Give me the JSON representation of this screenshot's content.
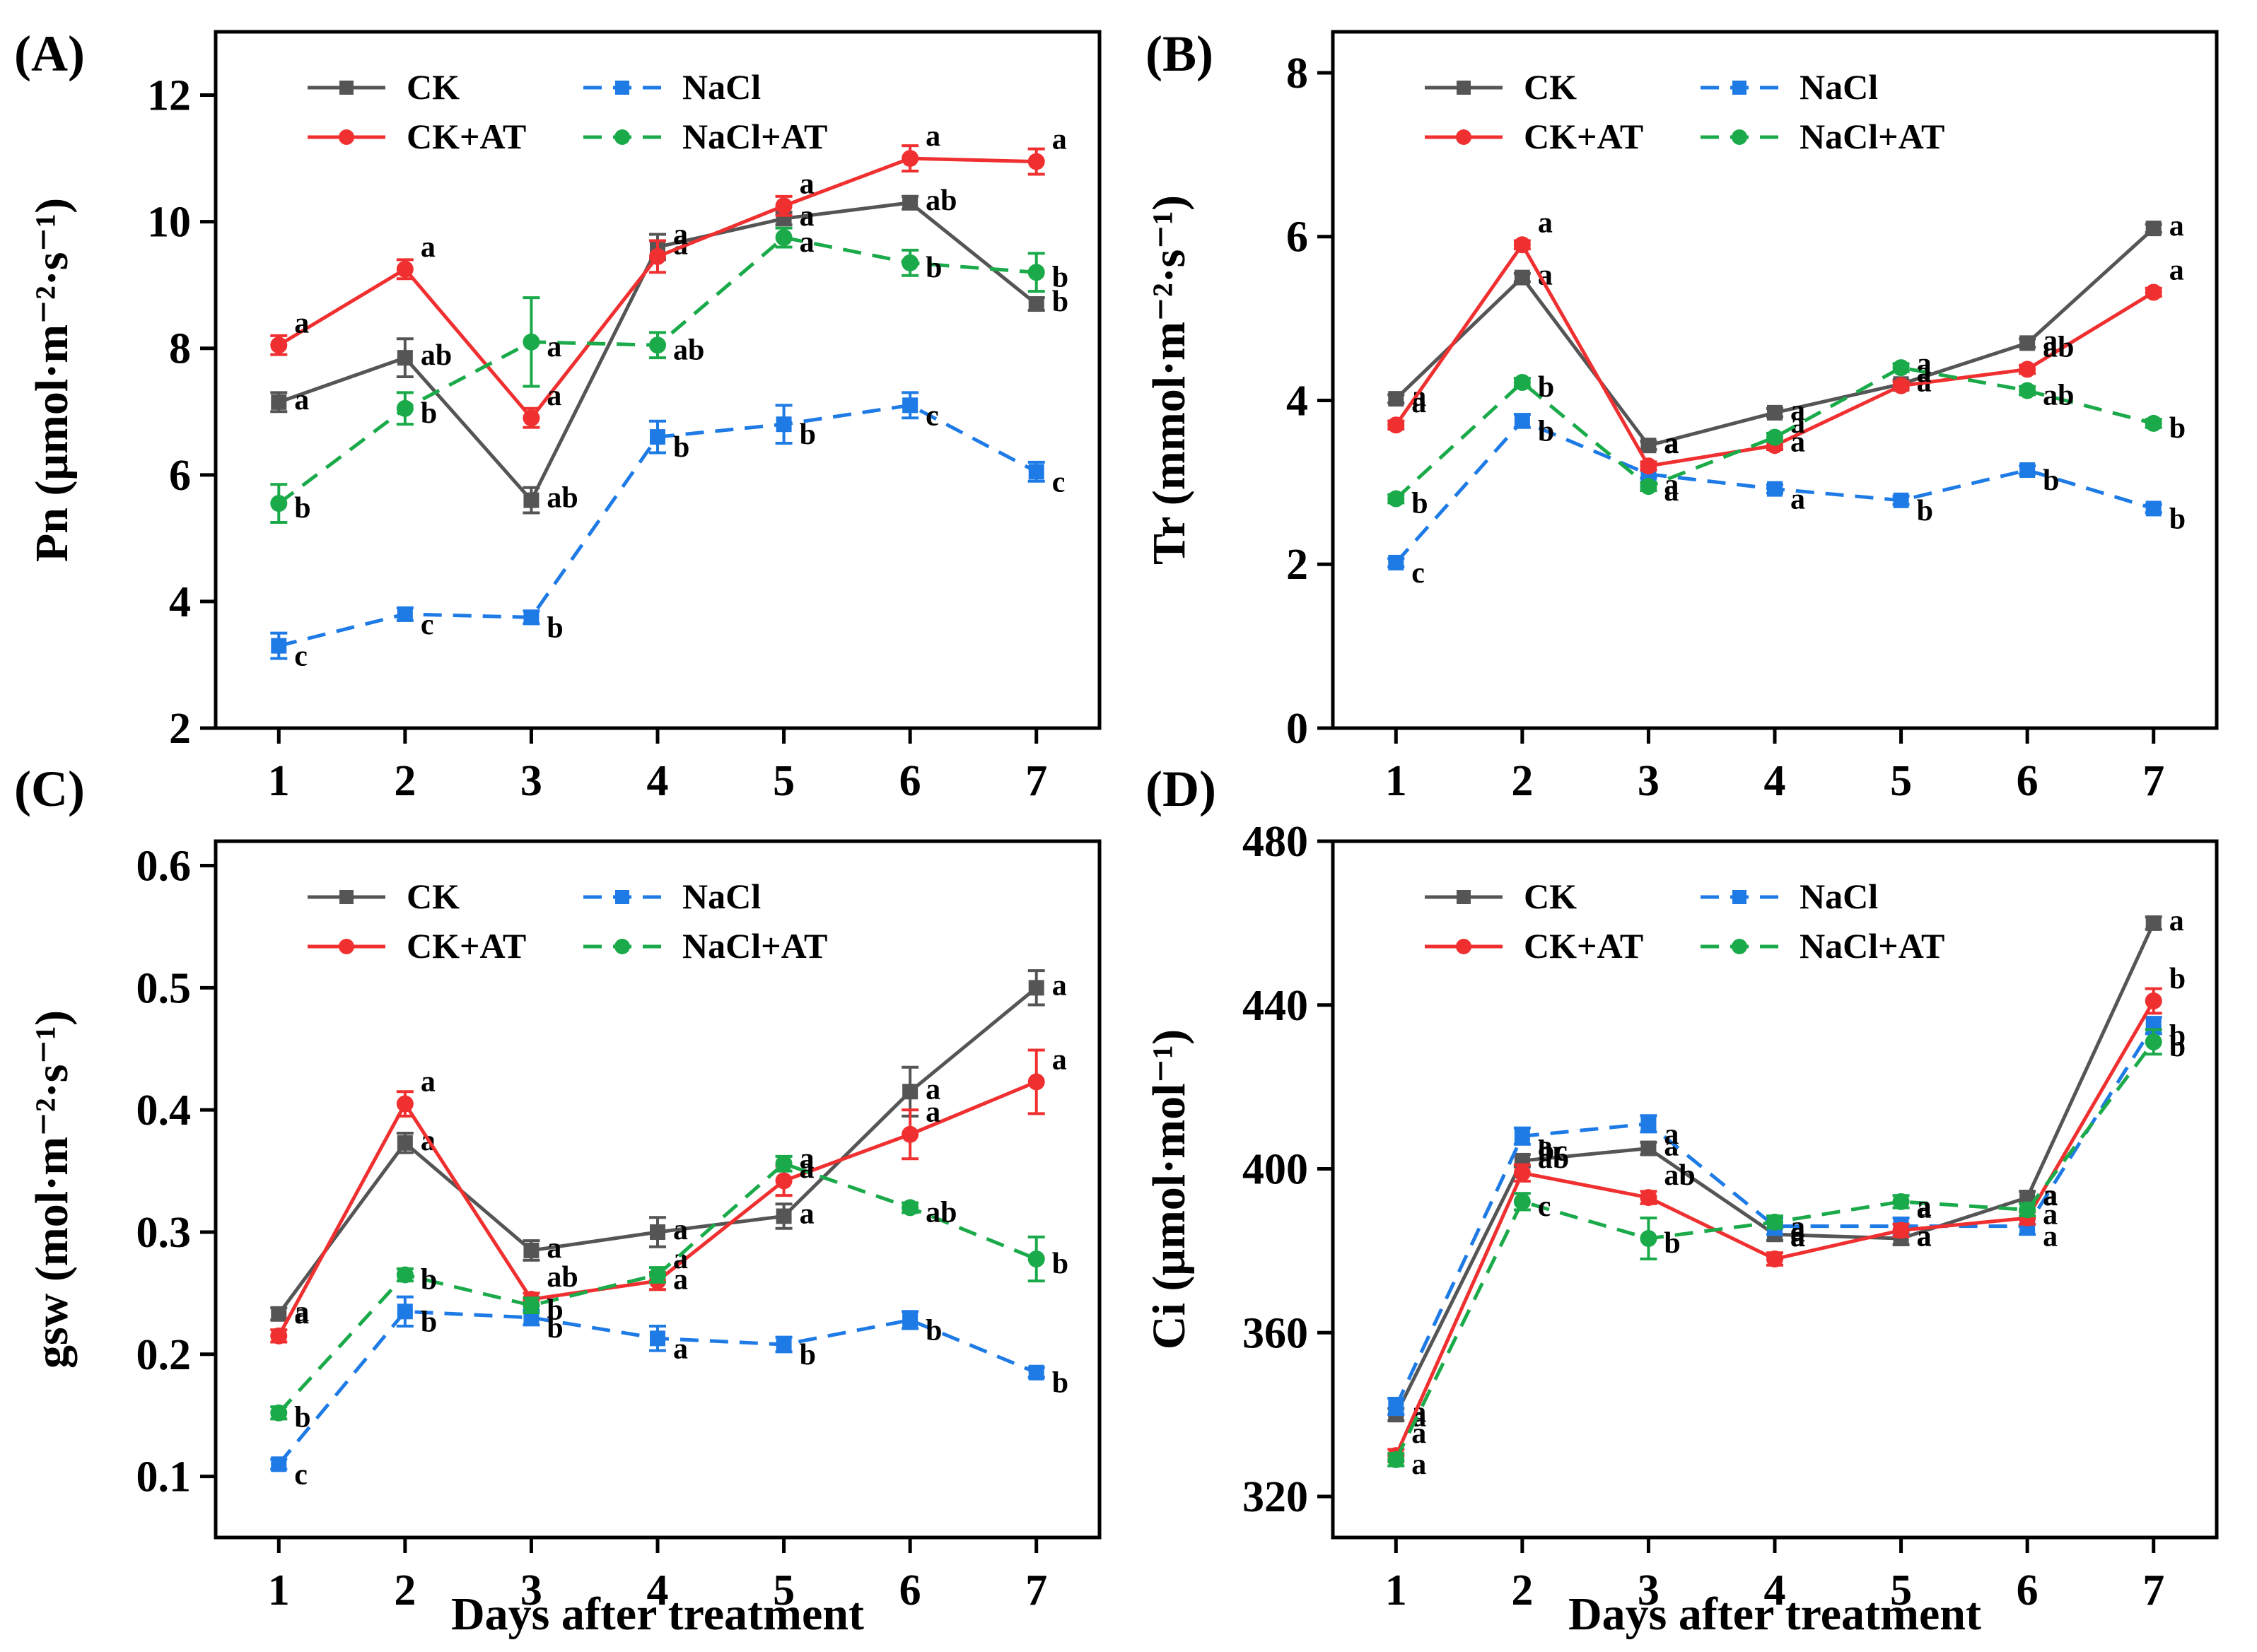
{
  "figure": {
    "x_axis_title": "Days after treatment",
    "series_styles": [
      {
        "name": "CK",
        "color": "#555555",
        "dash": "solid",
        "marker": "square"
      },
      {
        "name": "NaCl",
        "color": "#1e7be6",
        "dash": "dashed",
        "marker": "square"
      },
      {
        "name": "CK+AT",
        "color": "#f03030",
        "dash": "solid",
        "marker": "circle"
      },
      {
        "name": "NaCl+AT",
        "color": "#1aaa4a",
        "dash": "dashed",
        "marker": "circle"
      }
    ]
  },
  "chart_data": [
    {
      "panel": "(A)",
      "type": "line",
      "ylabel": "Pn (μmol·m⁻²·s⁻¹)",
      "xlabel": "",
      "x": [
        1,
        2,
        3,
        4,
        5,
        6,
        7
      ],
      "ylim": [
        2,
        13
      ],
      "yticks": [
        2,
        4,
        6,
        8,
        10,
        12
      ],
      "series": [
        {
          "name": "CK",
          "values": [
            7.15,
            7.85,
            5.6,
            9.6,
            10.05,
            10.3,
            8.7
          ],
          "errors": [
            0.15,
            0.3,
            0.2,
            0.2,
            0.1,
            0.1,
            0.1
          ],
          "labels": [
            "a",
            "ab",
            "ab",
            "a",
            "a",
            "ab",
            "b"
          ]
        },
        {
          "name": "NaCl",
          "values": [
            3.3,
            3.8,
            3.75,
            6.6,
            6.8,
            7.1,
            6.05
          ],
          "errors": [
            0.2,
            0.1,
            0.1,
            0.25,
            0.3,
            0.2,
            0.15
          ],
          "labels": [
            "c",
            "c",
            "b",
            "b",
            "b",
            "c",
            "c"
          ]
        },
        {
          "name": "CK+AT",
          "values": [
            8.05,
            9.25,
            6.9,
            9.45,
            10.25,
            11.0,
            10.95
          ],
          "errors": [
            0.15,
            0.15,
            0.15,
            0.25,
            0.15,
            0.2,
            0.2
          ],
          "labels": [
            "a",
            "a",
            "a",
            "a",
            "a",
            "a",
            "a"
          ]
        },
        {
          "name": "NaCl+AT",
          "values": [
            5.55,
            7.05,
            8.1,
            8.05,
            9.75,
            9.35,
            9.2
          ],
          "errors": [
            0.3,
            0.25,
            0.7,
            0.2,
            0.15,
            0.2,
            0.3
          ],
          "labels": [
            "b",
            "b",
            "a",
            "ab",
            "a",
            "b",
            "b"
          ]
        }
      ]
    },
    {
      "panel": "(B)",
      "type": "line",
      "ylabel": "Tr (mmol·m⁻²·s⁻¹)",
      "xlabel": "",
      "x": [
        1,
        2,
        3,
        4,
        5,
        6,
        7
      ],
      "ylim": [
        0,
        8.5
      ],
      "yticks": [
        0,
        2,
        4,
        6,
        8
      ],
      "series": [
        {
          "name": "CK",
          "values": [
            4.02,
            5.5,
            3.45,
            3.85,
            4.2,
            4.7,
            6.1
          ],
          "errors": [
            0.05,
            0.05,
            0.05,
            0.05,
            0.05,
            0.05,
            0.05
          ],
          "labels": [
            "a",
            "a",
            "a",
            "a",
            "a",
            "a",
            "a"
          ]
        },
        {
          "name": "NaCl",
          "values": [
            2.02,
            3.75,
            3.1,
            2.92,
            2.78,
            3.15,
            2.68
          ],
          "errors": [
            0.05,
            0.08,
            0.05,
            0.05,
            0.05,
            0.05,
            0.05
          ],
          "labels": [
            "c",
            "b",
            "a",
            "a",
            "b",
            "b",
            "b"
          ]
        },
        {
          "name": "CK+AT",
          "values": [
            3.7,
            5.9,
            3.2,
            3.45,
            4.18,
            4.38,
            5.32
          ],
          "errors": [
            0.05,
            0.05,
            0.05,
            0.05,
            0.05,
            0.05,
            0.05
          ],
          "labels": [
            "a",
            "a",
            "a",
            "a",
            "a",
            "ab",
            "a"
          ]
        },
        {
          "name": "NaCl+AT",
          "values": [
            2.8,
            4.22,
            2.95,
            3.55,
            4.4,
            4.12,
            3.72
          ],
          "errors": [
            0.05,
            0.05,
            0.05,
            0.05,
            0.05,
            0.05,
            0.05
          ],
          "labels": [
            "b",
            "b",
            "a",
            "a",
            "a",
            "ab",
            "b"
          ]
        }
      ]
    },
    {
      "panel": "(C)",
      "type": "line",
      "ylabel": "gsw (mol·m⁻²·s⁻¹)",
      "xlabel": "Days after treatment",
      "x": [
        1,
        2,
        3,
        4,
        5,
        6,
        7
      ],
      "ylim": [
        0.05,
        0.62
      ],
      "yticks": [
        0.1,
        0.2,
        0.3,
        0.4,
        0.5,
        0.6
      ],
      "ytick_labels": [
        "0.1",
        "0.2",
        "0.3",
        "0.4",
        "0.5",
        "0.6"
      ],
      "series": [
        {
          "name": "CK",
          "values": [
            0.233,
            0.373,
            0.285,
            0.3,
            0.313,
            0.415,
            0.5
          ],
          "errors": [
            0.005,
            0.008,
            0.008,
            0.012,
            0.01,
            0.02,
            0.014
          ],
          "labels": [
            "a",
            "a",
            "a",
            "a",
            "a",
            "a",
            "a"
          ]
        },
        {
          "name": "NaCl",
          "values": [
            0.11,
            0.235,
            0.23,
            0.213,
            0.208,
            0.228,
            0.185
          ],
          "errors": [
            0.004,
            0.012,
            0.006,
            0.01,
            0.006,
            0.007,
            0.004
          ],
          "labels": [
            "c",
            "b",
            "b",
            "a",
            "b",
            "b",
            "b"
          ]
        },
        {
          "name": "CK+AT",
          "values": [
            0.215,
            0.405,
            0.245,
            0.26,
            0.342,
            0.38,
            0.423
          ],
          "errors": [
            0.005,
            0.01,
            0.005,
            0.007,
            0.012,
            0.02,
            0.026
          ],
          "labels": [
            "a",
            "a",
            "ab",
            "a",
            "a",
            "a",
            "a"
          ]
        },
        {
          "name": "NaCl+AT",
          "values": [
            0.152,
            0.265,
            0.24,
            0.265,
            0.356,
            0.32,
            0.278
          ],
          "errors": [
            0.005,
            0.005,
            0.006,
            0.006,
            0.006,
            0.004,
            0.018
          ],
          "labels": [
            "b",
            "b",
            "b",
            "a",
            "a",
            "ab",
            "b"
          ]
        }
      ]
    },
    {
      "panel": "(D)",
      "type": "line",
      "ylabel": "Ci (μmol·mol⁻¹)",
      "xlabel": "Days after treatment",
      "x": [
        1,
        2,
        3,
        4,
        5,
        6,
        7
      ],
      "ylim": [
        310,
        480
      ],
      "yticks": [
        320,
        360,
        400,
        440,
        480
      ],
      "series": [
        {
          "name": "CK",
          "values": [
            340,
            402,
            405,
            384,
            383,
            393,
            460
          ],
          "errors": [
            1.5,
            1.5,
            1.5,
            1.5,
            1.5,
            1.5,
            1.5
          ],
          "labels": [
            "a",
            "ab",
            "a",
            "a",
            "a",
            "a",
            "a"
          ]
        },
        {
          "name": "NaCl",
          "values": [
            342,
            408,
            411,
            386,
            386,
            386,
            435
          ],
          "errors": [
            2,
            2,
            2,
            2,
            2,
            2,
            2
          ],
          "labels": [
            "a",
            "a",
            "a",
            "a",
            "a",
            "a",
            "b"
          ]
        },
        {
          "name": "CK+AT",
          "values": [
            330,
            399,
            393,
            378,
            385,
            388,
            441
          ],
          "errors": [
            1.5,
            2,
            1.5,
            1.5,
            1.5,
            1.5,
            3
          ],
          "labels": [
            "a",
            "bc",
            "ab",
            "a",
            "a",
            "a",
            "b"
          ]
        },
        {
          "name": "NaCl+AT",
          "values": [
            329,
            392,
            383,
            387,
            392,
            390,
            431
          ],
          "errors": [
            1.5,
            2,
            5,
            1.5,
            1.5,
            1.5,
            3
          ],
          "labels": [
            "a",
            "c",
            "b",
            "a",
            "a",
            "a",
            "b"
          ]
        }
      ]
    }
  ]
}
